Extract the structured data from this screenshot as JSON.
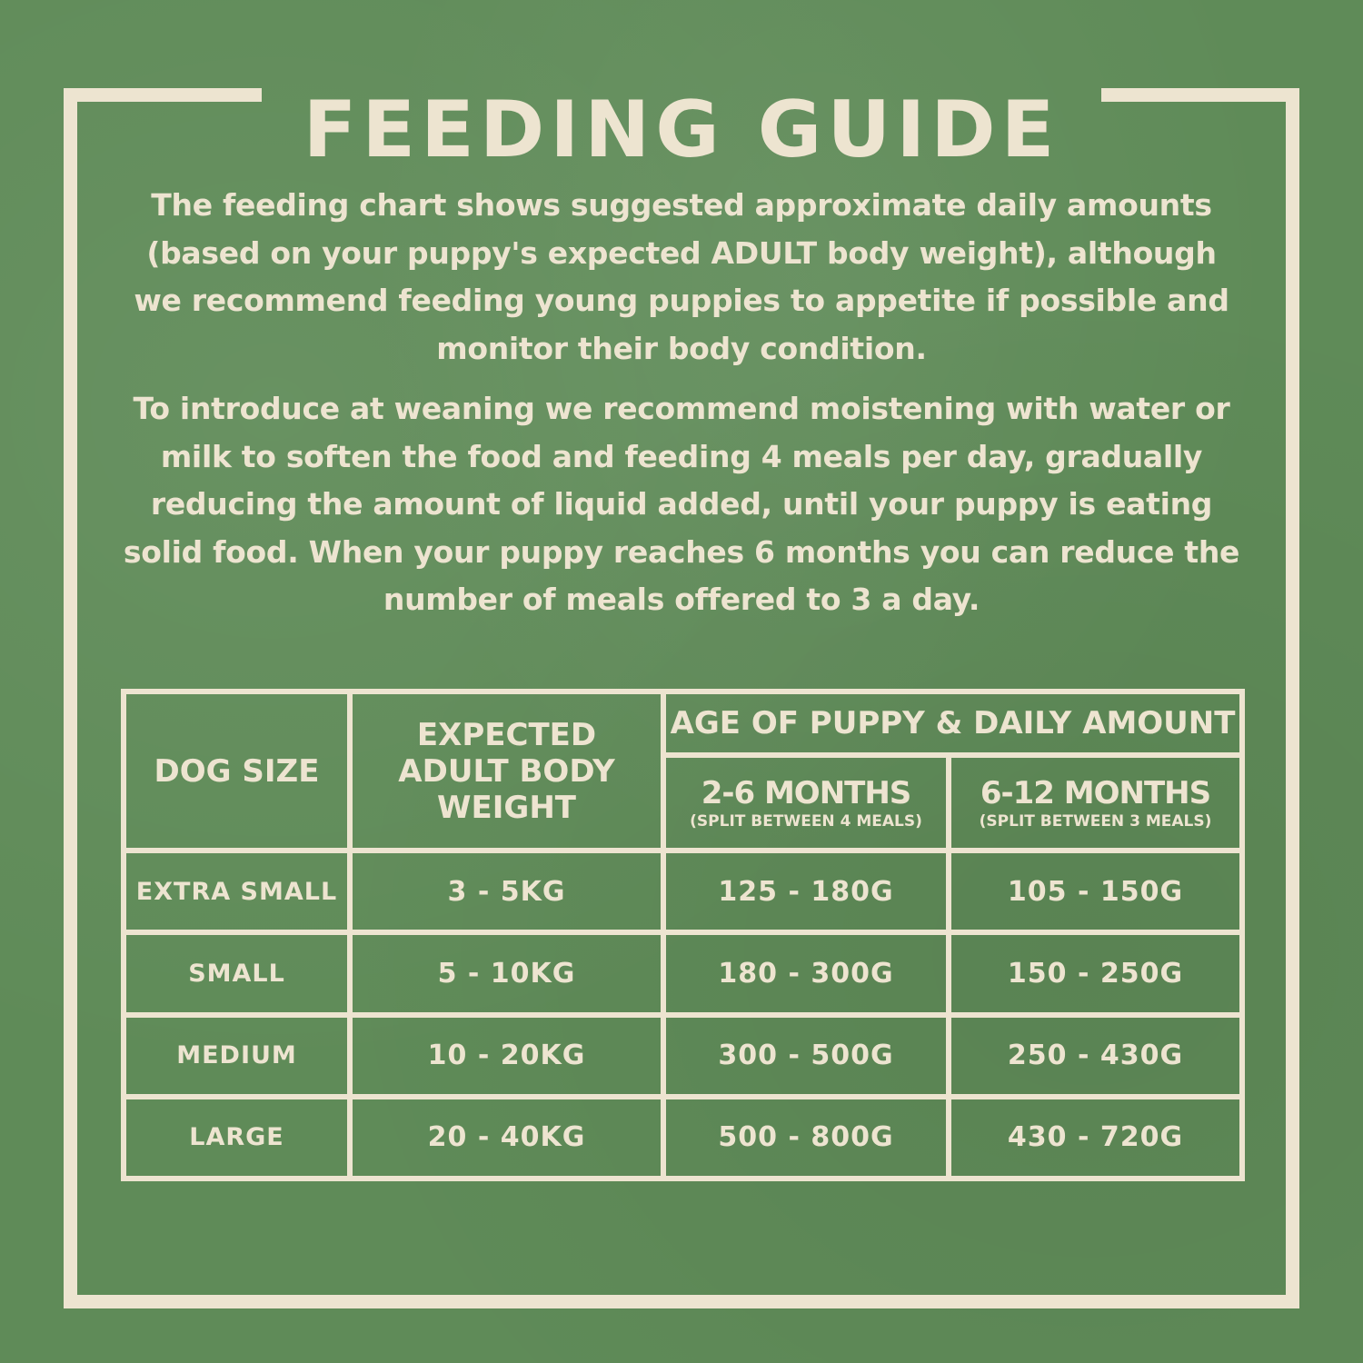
{
  "title": "FEEDING GUIDE",
  "paragraphs": [
    "The feeding chart shows suggested approximate daily amounts (based on your puppy's expected ADULT body weight), although we recommend feeding young puppies to appetite if possible and monitor their body condition.",
    "To introduce at weaning we recommend moistening with water or milk to soften the food and feeding 4 meals per day, gradually reducing the amount of liquid added, until your puppy is eating solid food. When your puppy reaches 6 months you can reduce the number of meals offered to 3 a day."
  ],
  "table": {
    "headers": {
      "dog_size": "DOG SIZE",
      "weight": "EXPECTED ADULT BODY WEIGHT",
      "age_group": "AGE OF PUPPY & DAILY AMOUNT",
      "col1": "2-6 MONTHS",
      "col1_note": "(SPLIT BETWEEN 4 MEALS)",
      "col2": "6-12 MONTHS",
      "col2_note": "(SPLIT BETWEEN 3 MEALS)"
    },
    "rows": [
      {
        "size": "EXTRA SMALL",
        "weight": "3 - 5KG",
        "m2_6": "125 - 180G",
        "m6_12": "105 - 150G"
      },
      {
        "size": "SMALL",
        "weight": "5 - 10KG",
        "m2_6": "180 - 300G",
        "m6_12": "150 - 250G"
      },
      {
        "size": "MEDIUM",
        "weight": "10 - 20KG",
        "m2_6": "300 - 500G",
        "m6_12": "250 - 430G"
      },
      {
        "size": "LARGE",
        "weight": "20 - 40KG",
        "m2_6": "500 - 800G",
        "m6_12": "430 - 720G"
      }
    ]
  },
  "colors": {
    "background": "#5f8b58",
    "text": "#ede4d0"
  }
}
